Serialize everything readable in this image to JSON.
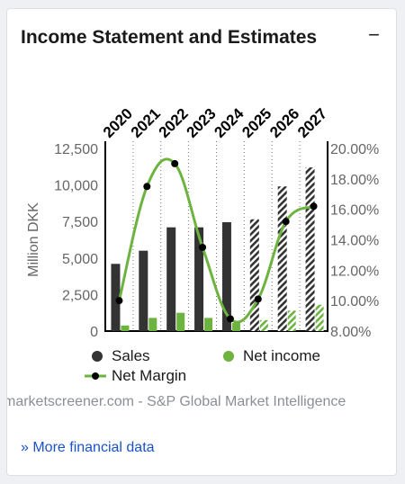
{
  "card": {
    "title": "Income Statement and Estimates",
    "collapse_symbol": "−",
    "source_text": "marketscreener.com - S&P Global Market Intelligence",
    "more_link": "» More financial data"
  },
  "chart_data": {
    "type": "bar",
    "title": "",
    "categories": [
      "2020",
      "2021",
      "2022",
      "2023",
      "2024",
      "2025",
      "2026",
      "2027"
    ],
    "estimate_from": "2025",
    "y_left": {
      "label": "Million DKK",
      "lim": [
        0,
        12500
      ],
      "ticks": [
        0,
        2500,
        5000,
        7500,
        10000,
        12500
      ],
      "tick_labels": [
        "0",
        "2,500",
        "5,000",
        "7,500",
        "10,000",
        "12,500"
      ]
    },
    "y_right": {
      "lim": [
        8,
        20
      ],
      "ticks": [
        8,
        10,
        12,
        14,
        16,
        18,
        20
      ],
      "tick_labels": [
        "8.00%",
        "10.00%",
        "12.00%",
        "14.00%",
        "16.00%",
        "18.00%",
        "20.00%"
      ]
    },
    "series": [
      {
        "name": "Sales",
        "kind": "bar",
        "axis": "left",
        "color": "#333333",
        "values": [
          4600,
          5500,
          7100,
          7100,
          7450,
          7650,
          9900,
          11200
        ]
      },
      {
        "name": "Net income",
        "kind": "bar",
        "axis": "left",
        "color": "#6db33f",
        "values": [
          380,
          900,
          1250,
          900,
          550,
          750,
          1400,
          1800
        ]
      },
      {
        "name": "Net Margin",
        "kind": "line",
        "axis": "right",
        "color": "#6db33f",
        "marker_color": "#000000",
        "values": [
          10.0,
          17.5,
          19.0,
          13.5,
          8.8,
          10.1,
          15.2,
          16.2
        ]
      }
    ],
    "grid": {
      "vertical": true,
      "style": "dotted"
    },
    "legend": {
      "placement": "bottom"
    }
  }
}
